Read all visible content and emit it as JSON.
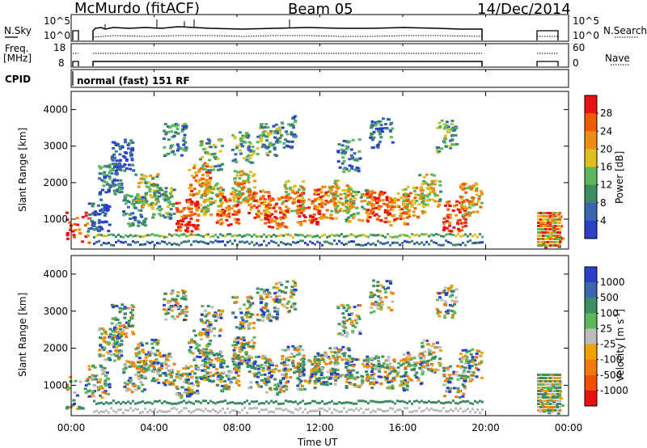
{
  "header": {
    "station": "McMurdo (fitACF)",
    "beam": "Beam 05",
    "date": "14/Dec/2014"
  },
  "top_panels": {
    "nsky_label": "N.Sky",
    "nsearch_label": "N.Search",
    "nsky_ticks": [
      "10^5",
      "10^0"
    ],
    "nsearch_ticks": [
      "10^5",
      "10^0"
    ],
    "freq_label": "Freq.",
    "freq_unit": "[MHz]",
    "freq_ticks": [
      "18",
      "8"
    ],
    "nave_label": "Nave",
    "nave_ticks": [
      "60",
      "0"
    ],
    "cpid_label": "CPID",
    "cpid_value": "normal (fast) 151 RF"
  },
  "colors": {
    "power_scale": [
      "#2a40c8",
      "#3a66b0",
      "#3d8c64",
      "#5cb85c",
      "#e0c020",
      "#f08c10",
      "#f05a00",
      "#e81010"
    ],
    "velocity_scale": [
      "#2a40c8",
      "#3a66b0",
      "#3d8c64",
      "#5cb85c",
      "#bcbcbc",
      "#f0a000",
      "#f07a10",
      "#f05000",
      "#e81010"
    ],
    "background": "#ffffff"
  },
  "chart_data": [
    {
      "type": "heatmap",
      "panel": "power",
      "ylabel": "Slant Range [km]",
      "ylim": [
        180,
        4500
      ],
      "y_ticks": [
        1000,
        2000,
        3000,
        4000
      ],
      "x_ticks": [
        "00:00",
        "04:00",
        "08:00",
        "12:00",
        "16:00",
        "20:00",
        "00:00"
      ],
      "colorbar": {
        "label": "Power [dB]",
        "ticks": [
          "4",
          "8",
          "12",
          "16",
          "20",
          "24",
          "28"
        ]
      }
    },
    {
      "type": "heatmap",
      "panel": "velocity",
      "ylabel": "Slant Range [km]",
      "ylim": [
        180,
        4500
      ],
      "y_ticks": [
        1000,
        2000,
        3000,
        4000
      ],
      "x_ticks": [
        "00:00",
        "04:00",
        "08:00",
        "12:00",
        "16:00",
        "20:00",
        "00:00"
      ],
      "xlabel": "Time UT",
      "colorbar": {
        "label": "Velocity [m s^-1]",
        "ticks": [
          "1000",
          "500",
          "100",
          "25",
          "-25",
          "-100",
          "-500",
          "-1000"
        ]
      }
    }
  ]
}
